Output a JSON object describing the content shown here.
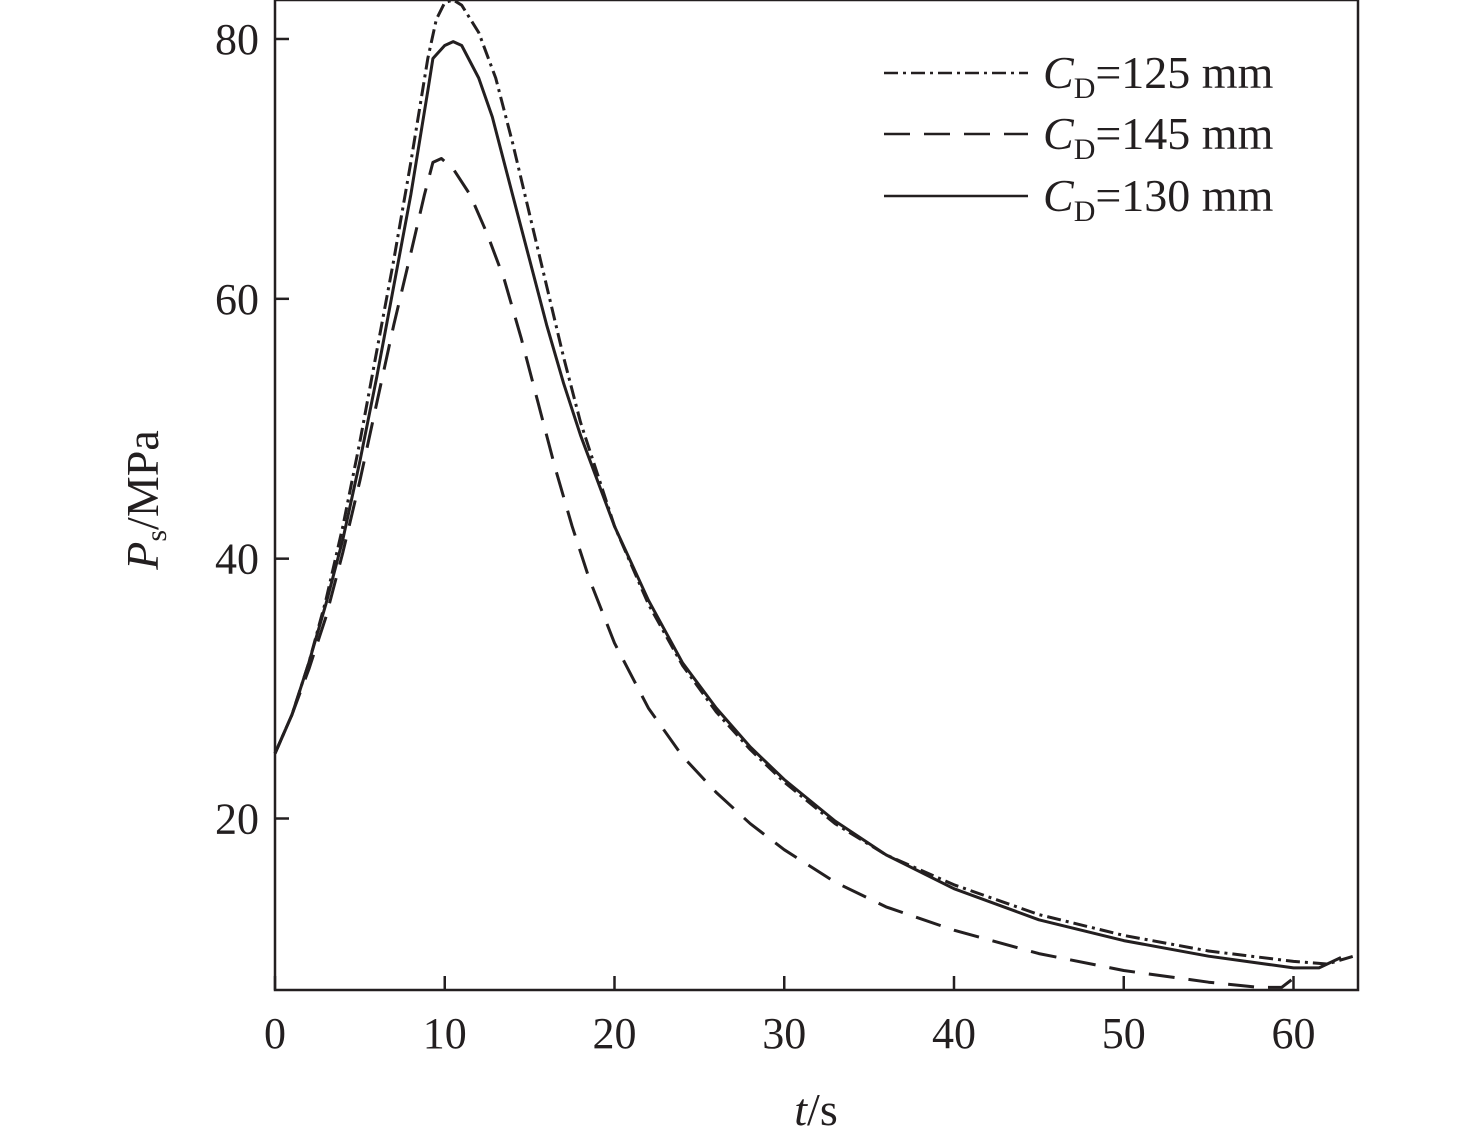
{
  "chart_data": {
    "type": "line",
    "xlabel": {
      "var": "t",
      "unit": "/s"
    },
    "ylabel": {
      "var": "P",
      "sub": "s",
      "unit": "/MPa"
    },
    "xlim": [
      0,
      63.8
    ],
    "ylim": [
      6.8,
      83
    ],
    "xticks": [
      0,
      10,
      20,
      30,
      40,
      50,
      60
    ],
    "yticks": [
      20,
      40,
      60,
      80
    ],
    "grid": false,
    "legend_position": "top-right",
    "series": [
      {
        "name": "C_D=125 mm",
        "label_var": "C",
        "label_sub": "D",
        "label_rest": "=125 mm",
        "style": "dash-dot",
        "points": [
          [
            0,
            25
          ],
          [
            1,
            28
          ],
          [
            2,
            32
          ],
          [
            3,
            36.8
          ],
          [
            4,
            42.5
          ],
          [
            5,
            49
          ],
          [
            6,
            56
          ],
          [
            7,
            63
          ],
          [
            8,
            70.5
          ],
          [
            9,
            78.5
          ],
          [
            9.5,
            81.5
          ],
          [
            10,
            82.8
          ],
          [
            10.5,
            83
          ],
          [
            11,
            82.6
          ],
          [
            12,
            80.5
          ],
          [
            13,
            77
          ],
          [
            14,
            72
          ],
          [
            15,
            66.5
          ],
          [
            16,
            61
          ],
          [
            17,
            55.5
          ],
          [
            18,
            50.5
          ],
          [
            20,
            42.5
          ],
          [
            22,
            36.5
          ],
          [
            24,
            31.8
          ],
          [
            26,
            28.2
          ],
          [
            28,
            25.3
          ],
          [
            30,
            22.8
          ],
          [
            33,
            19.6
          ],
          [
            36,
            17.2
          ],
          [
            40,
            14.9
          ],
          [
            45,
            12.6
          ],
          [
            50,
            11
          ],
          [
            55,
            9.8
          ],
          [
            60,
            9
          ],
          [
            62,
            8.8
          ],
          [
            63.8,
            9.5
          ]
        ]
      },
      {
        "name": "C_D=145 mm",
        "label_var": "C",
        "label_sub": "D",
        "label_rest": "=145 mm",
        "style": "dashed",
        "points": [
          [
            0,
            25
          ],
          [
            1,
            28
          ],
          [
            2,
            31.5
          ],
          [
            3,
            35.5
          ],
          [
            4,
            40.5
          ],
          [
            5,
            46
          ],
          [
            6,
            52
          ],
          [
            7,
            58
          ],
          [
            8,
            63.5
          ],
          [
            8.8,
            68
          ],
          [
            9.3,
            70.5
          ],
          [
            9.8,
            70.8
          ],
          [
            10.5,
            70
          ],
          [
            11.5,
            68
          ],
          [
            12.5,
            65
          ],
          [
            13.5,
            61.5
          ],
          [
            14.5,
            57
          ],
          [
            15.5,
            52
          ],
          [
            16.5,
            47
          ],
          [
            17.5,
            42.5
          ],
          [
            18.5,
            38.5
          ],
          [
            20,
            33.5
          ],
          [
            22,
            28.5
          ],
          [
            24,
            24.8
          ],
          [
            26,
            22
          ],
          [
            28,
            19.6
          ],
          [
            30,
            17.6
          ],
          [
            33,
            15.1
          ],
          [
            36,
            13.2
          ],
          [
            40,
            11.4
          ],
          [
            45,
            9.6
          ],
          [
            50,
            8.3
          ],
          [
            55,
            7.4
          ],
          [
            58,
            7
          ],
          [
            59.3,
            7
          ],
          [
            60.2,
            7.9
          ]
        ]
      },
      {
        "name": "C_D=130 mm",
        "label_var": "C",
        "label_sub": "D",
        "label_rest": "=130 mm",
        "style": "solid",
        "points": [
          [
            0,
            25
          ],
          [
            1,
            28
          ],
          [
            2,
            32
          ],
          [
            3,
            36.5
          ],
          [
            4,
            41.5
          ],
          [
            5,
            47.5
          ],
          [
            6,
            54
          ],
          [
            7,
            61
          ],
          [
            8,
            68
          ],
          [
            9,
            76
          ],
          [
            9.3,
            78.5
          ],
          [
            10,
            79.5
          ],
          [
            10.5,
            79.8
          ],
          [
            11,
            79.5
          ],
          [
            12,
            77
          ],
          [
            12.8,
            74
          ],
          [
            14,
            68
          ],
          [
            15,
            63
          ],
          [
            16,
            58
          ],
          [
            17,
            53.5
          ],
          [
            18,
            49.5
          ],
          [
            20,
            42.5
          ],
          [
            22,
            36.8
          ],
          [
            24,
            32
          ],
          [
            26,
            28.5
          ],
          [
            28,
            25.5
          ],
          [
            30,
            23
          ],
          [
            33,
            19.8
          ],
          [
            36,
            17.2
          ],
          [
            40,
            14.6
          ],
          [
            45,
            12.2
          ],
          [
            50,
            10.6
          ],
          [
            55,
            9.4
          ],
          [
            60,
            8.5
          ],
          [
            61.5,
            8.5
          ],
          [
            62.8,
            9.3
          ]
        ]
      }
    ]
  }
}
